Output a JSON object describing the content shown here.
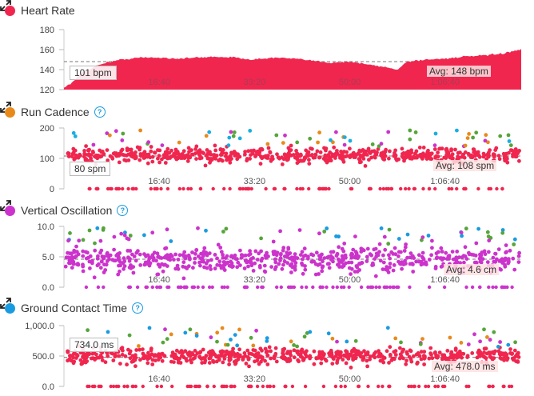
{
  "colors": {
    "heart": "#f0264f",
    "cad_orange": "#e88a1a",
    "cad_green": "#56a53a",
    "cad_blue": "#1aaee0",
    "cad_purple": "#cc33cc",
    "vo": "#cc33cc",
    "gct": "#1a9be0"
  },
  "icons": {
    "help": "?",
    "expand": "expand-icon"
  },
  "panels": {
    "heart_rate": {
      "title": "Heart Rate",
      "y_ticks": [
        "180",
        "160",
        "140",
        "120"
      ],
      "x_ticks": [
        "16:40",
        "33:20",
        "50:00",
        "1:06:40"
      ],
      "cursor_label": "101 bpm",
      "avg_label": "Avg: 148 bpm"
    },
    "run_cadence": {
      "title": "Run Cadence",
      "y_ticks": [
        "200",
        "100",
        "0"
      ],
      "x_ticks": [
        "16:40",
        "33:20",
        "50:00",
        "1:06:40"
      ],
      "cursor_label": "80 spm",
      "avg_label": "Avg: 108 spm"
    },
    "vertical_oscillation": {
      "title": "Vertical Oscillation",
      "y_ticks": [
        "10.0",
        "5.0",
        "0.0"
      ],
      "x_ticks": [
        "16:40",
        "33:20",
        "50:00",
        "1:06:40"
      ],
      "avg_label": "Avg: 4.6 cm"
    },
    "ground_contact_time": {
      "title": "Ground Contact Time",
      "y_ticks": [
        "1,000.0",
        "500.0",
        "0.0"
      ],
      "x_ticks": [
        "16:40",
        "33:20",
        "50:00",
        "1:06:40"
      ],
      "cursor_label": "734.0 ms",
      "avg_label": "Avg: 478.0 ms"
    }
  },
  "chart_data": [
    {
      "type": "area",
      "x_unit": "elapsed time (s)",
      "x_tick_values": [
        1000,
        2000,
        3000,
        4000
      ],
      "x_range": [
        0,
        4800
      ],
      "ylim": [
        120,
        180
      ],
      "y_ticks": [
        120,
        140,
        160,
        180
      ],
      "average": 148,
      "x": [
        0,
        100,
        200,
        300,
        400,
        600,
        800,
        1000,
        1200,
        1400,
        1600,
        1800,
        2000,
        2200,
        2400,
        2600,
        2800,
        3000,
        3200,
        3400,
        3500,
        3600,
        3800,
        4000,
        4200,
        4400,
        4600,
        4800
      ],
      "y": [
        122,
        128,
        138,
        142,
        146,
        150,
        152,
        152,
        151,
        152,
        153,
        152,
        150,
        152,
        151,
        149,
        147,
        148,
        145,
        142,
        140,
        148,
        150,
        151,
        153,
        154,
        156,
        160
      ],
      "grid": false
    },
    {
      "type": "scatter",
      "ylim": [
        0,
        200
      ],
      "y_ticks": [
        0,
        100,
        200
      ],
      "average": 108,
      "main_band": [
        80,
        140
      ],
      "grid": false
    },
    {
      "type": "scatter",
      "ylim": [
        0,
        10
      ],
      "y_ticks": [
        0,
        5,
        10
      ],
      "average": 4.6,
      "main_band": [
        2,
        7
      ],
      "grid": false
    },
    {
      "type": "scatter",
      "ylim": [
        0,
        1000
      ],
      "y_ticks": [
        0,
        500,
        1000
      ],
      "average": 478,
      "main_band": [
        350,
        650
      ],
      "grid": false
    }
  ]
}
